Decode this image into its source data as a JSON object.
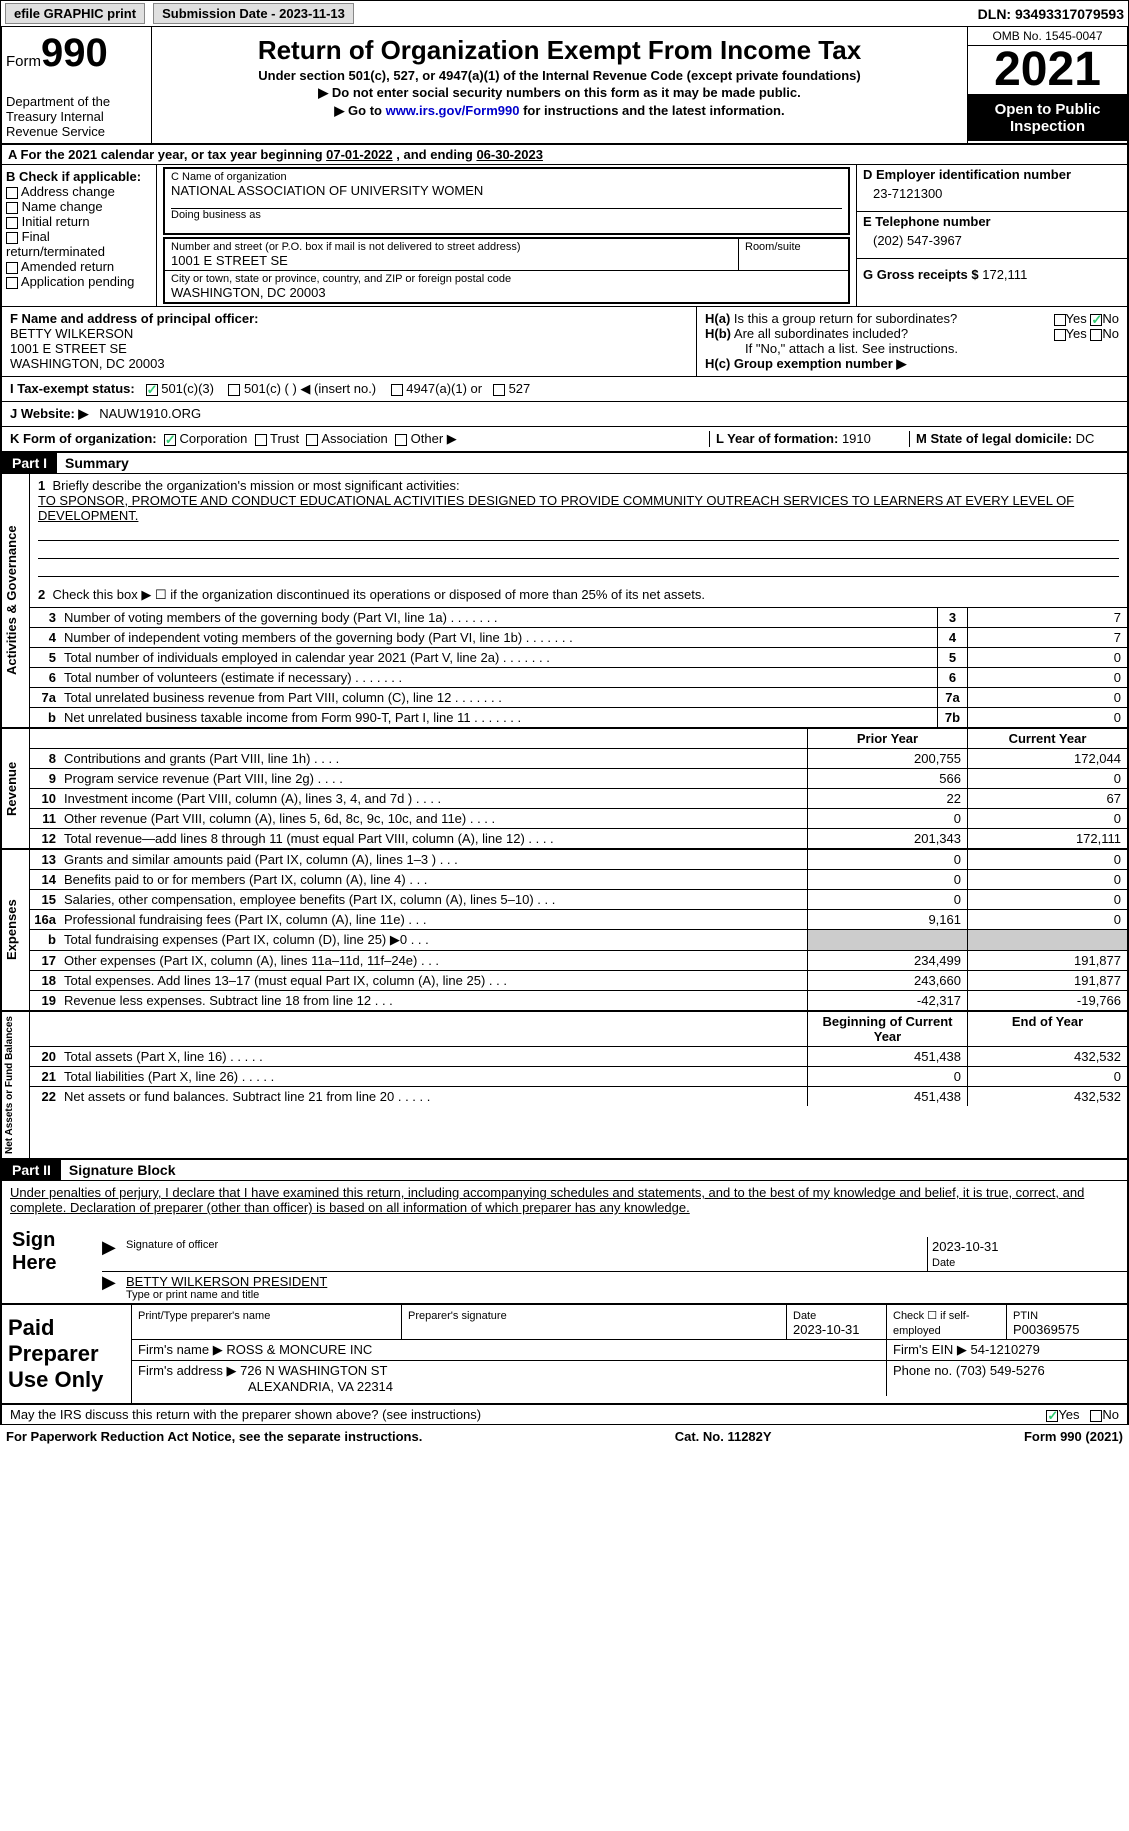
{
  "topbar": {
    "efile": "efile GRAPHIC print",
    "subdate_label": "Submission Date - ",
    "subdate": "2023-11-13",
    "dln_label": "DLN: ",
    "dln": "93493317079593"
  },
  "header": {
    "form_label": "Form",
    "form_num": "990",
    "dept": "Department of the Treasury Internal Revenue Service",
    "title": "Return of Organization Exempt From Income Tax",
    "subtitle": "Under section 501(c), 527, or 4947(a)(1) of the Internal Revenue Code (except private foundations)",
    "note1": "▶ Do not enter social security numbers on this form as it may be made public.",
    "note2_pre": "▶ Go to ",
    "note2_link": "www.irs.gov/Form990",
    "note2_post": " for instructions and the latest information.",
    "omb": "OMB No. 1545-0047",
    "year": "2021",
    "open": "Open to Public Inspection"
  },
  "calrow": {
    "text_a": "A For the 2021 calendar year, or tax year beginning ",
    "begin": "07-01-2022",
    "text_b": " , and ending ",
    "end": "06-30-2023"
  },
  "B": {
    "label": "B Check if applicable:",
    "items": [
      "Address change",
      "Name change",
      "Initial return",
      "Final return/terminated",
      "Amended return",
      "Application pending"
    ]
  },
  "C": {
    "name_label": "C Name of organization",
    "name": "NATIONAL ASSOCIATION OF UNIVERSITY WOMEN",
    "dba_label": "Doing business as",
    "addr_label": "Number and street (or P.O. box if mail is not delivered to street address)",
    "room_label": "Room/suite",
    "addr": "1001 E STREET SE",
    "city_label": "City or town, state or province, country, and ZIP or foreign postal code",
    "city": "WASHINGTON, DC  20003"
  },
  "D": {
    "ein_label": "D Employer identification number",
    "ein": "23-7121300",
    "E_label": "E Telephone number",
    "phone": "(202) 547-3967",
    "G_label": "G Gross receipts $ ",
    "gross": "172,111"
  },
  "F": {
    "label": "F  Name and address of principal officer:",
    "name": "BETTY WILKERSON",
    "addr1": "1001 E STREET SE",
    "addr2": "WASHINGTON, DC  20003"
  },
  "H": {
    "a_label": "H(a)  Is this a group return for subordinates?",
    "b_label": "H(b)  Are all subordinates included?",
    "b_note": "If \"No,\" attach a list. See instructions.",
    "c_label": "H(c)  Group exemption number ▶",
    "yes": "Yes",
    "no": "No"
  },
  "I": {
    "label": "I   Tax-exempt status:",
    "opts": [
      "501(c)(3)",
      "501(c) (  ) ◀ (insert no.)",
      "4947(a)(1) or",
      "527"
    ]
  },
  "J": {
    "label": "J   Website: ▶",
    "val": "NAUW1910.ORG"
  },
  "K": {
    "label": "K Form of organization:",
    "opts": [
      "Corporation",
      "Trust",
      "Association",
      "Other ▶"
    ]
  },
  "L": {
    "label": "L Year of formation: ",
    "val": "1910"
  },
  "M": {
    "label": "M State of legal domicile: ",
    "val": "DC"
  },
  "parts": {
    "p1": "Part I",
    "p1_label": "Summary",
    "p2": "Part II",
    "p2_label": "Signature Block"
  },
  "summary": {
    "line1_label": "Briefly describe the organization's mission or most significant activities:",
    "line1_text": "TO SPONSOR, PROMOTE AND CONDUCT EDUCATIONAL ACTIVITIES DESIGNED TO PROVIDE COMMUNITY OUTREACH SERVICES TO LEARNERS AT EVERY LEVEL OF DEVELOPMENT.",
    "line2": "Check this box ▶ ☐ if the organization discontinued its operations or disposed of more than 25% of its net assets.",
    "rows_gov": [
      {
        "n": "3",
        "d": "Number of voting members of the governing body (Part VI, line 1a)",
        "b": "3",
        "v": "7"
      },
      {
        "n": "4",
        "d": "Number of independent voting members of the governing body (Part VI, line 1b)",
        "b": "4",
        "v": "7"
      },
      {
        "n": "5",
        "d": "Total number of individuals employed in calendar year 2021 (Part V, line 2a)",
        "b": "5",
        "v": "0"
      },
      {
        "n": "6",
        "d": "Total number of volunteers (estimate if necessary)",
        "b": "6",
        "v": "0"
      },
      {
        "n": "7a",
        "d": "Total unrelated business revenue from Part VIII, column (C), line 12",
        "b": "7a",
        "v": "0"
      },
      {
        "n": "b",
        "d": "Net unrelated business taxable income from Form 990-T, Part I, line 11",
        "b": "7b",
        "v": "0"
      }
    ],
    "col_py": "Prior Year",
    "col_cy": "Current Year",
    "rows_rev": [
      {
        "n": "8",
        "d": "Contributions and grants (Part VIII, line 1h)",
        "py": "200,755",
        "cy": "172,044"
      },
      {
        "n": "9",
        "d": "Program service revenue (Part VIII, line 2g)",
        "py": "566",
        "cy": "0"
      },
      {
        "n": "10",
        "d": "Investment income (Part VIII, column (A), lines 3, 4, and 7d )",
        "py": "22",
        "cy": "67"
      },
      {
        "n": "11",
        "d": "Other revenue (Part VIII, column (A), lines 5, 6d, 8c, 9c, 10c, and 11e)",
        "py": "0",
        "cy": "0"
      },
      {
        "n": "12",
        "d": "Total revenue—add lines 8 through 11 (must equal Part VIII, column (A), line 12)",
        "py": "201,343",
        "cy": "172,111"
      }
    ],
    "rows_exp": [
      {
        "n": "13",
        "d": "Grants and similar amounts paid (Part IX, column (A), lines 1–3 )",
        "py": "0",
        "cy": "0"
      },
      {
        "n": "14",
        "d": "Benefits paid to or for members (Part IX, column (A), line 4)",
        "py": "0",
        "cy": "0"
      },
      {
        "n": "15",
        "d": "Salaries, other compensation, employee benefits (Part IX, column (A), lines 5–10)",
        "py": "0",
        "cy": "0"
      },
      {
        "n": "16a",
        "d": "Professional fundraising fees (Part IX, column (A), line 11e)",
        "py": "9,161",
        "cy": "0"
      },
      {
        "n": "b",
        "d": "Total fundraising expenses (Part IX, column (D), line 25) ▶0",
        "py": "",
        "cy": "",
        "shade": true
      },
      {
        "n": "17",
        "d": "Other expenses (Part IX, column (A), lines 11a–11d, 11f–24e)",
        "py": "234,499",
        "cy": "191,877"
      },
      {
        "n": "18",
        "d": "Total expenses. Add lines 13–17 (must equal Part IX, column (A), line 25)",
        "py": "243,660",
        "cy": "191,877"
      },
      {
        "n": "19",
        "d": "Revenue less expenses. Subtract line 18 from line 12",
        "py": "-42,317",
        "cy": "-19,766"
      }
    ],
    "col_boy": "Beginning of Current Year",
    "col_eoy": "End of Year",
    "rows_net": [
      {
        "n": "20",
        "d": "Total assets (Part X, line 16)",
        "py": "451,438",
        "cy": "432,532"
      },
      {
        "n": "21",
        "d": "Total liabilities (Part X, line 26)",
        "py": "0",
        "cy": "0"
      },
      {
        "n": "22",
        "d": "Net assets or fund balances. Subtract line 21 from line 20",
        "py": "451,438",
        "cy": "432,532"
      }
    ],
    "vlabels": {
      "gov": "Activities & Governance",
      "rev": "Revenue",
      "exp": "Expenses",
      "net": "Net Assets or Fund Balances"
    }
  },
  "sig": {
    "decl": "Under penalties of perjury, I declare that I have examined this return, including accompanying schedules and statements, and to the best of my knowledge and belief, it is true, correct, and complete. Declaration of preparer (other than officer) is based on all information of which preparer has any knowledge.",
    "sign_here": "Sign Here",
    "sig_officer": "Signature of officer",
    "date": "2023-10-31",
    "dlabel": "Date",
    "name_title": "BETTY WILKERSON  PRESIDENT",
    "name_title_label": "Type or print name and title"
  },
  "prep": {
    "label": "Paid Preparer Use Only",
    "r1": {
      "c1_label": "Print/Type preparer's name",
      "c2_label": "Preparer's signature",
      "c3_label": "Date",
      "c3_val": "2023-10-31",
      "c4_label": "Check ☐ if self-employed",
      "c5_label": "PTIN",
      "c5_val": "P00369575"
    },
    "r2": {
      "name_label": "Firm's name    ▶ ",
      "name": "ROSS & MONCURE INC",
      "ein_label": "Firm's EIN ▶ ",
      "ein": "54-1210279"
    },
    "r3": {
      "addr_label": "Firm's address ▶ ",
      "addr1": "726 N WASHINGTON ST",
      "addr2": "ALEXANDRIA, VA  22314",
      "phone_label": "Phone no. ",
      "phone": "(703) 549-5276"
    }
  },
  "discuss": {
    "text": "May the IRS discuss this return with the preparer shown above? (see instructions)",
    "yes": "Yes",
    "no": "No"
  },
  "footer": {
    "left": "For Paperwork Reduction Act Notice, see the separate instructions.",
    "mid": "Cat. No. 11282Y",
    "right": "Form 990 (2021)"
  },
  "colors": {
    "black": "#000000",
    "link": "#0000cc",
    "green": "#2ecc71",
    "shade": "#cccccc"
  }
}
